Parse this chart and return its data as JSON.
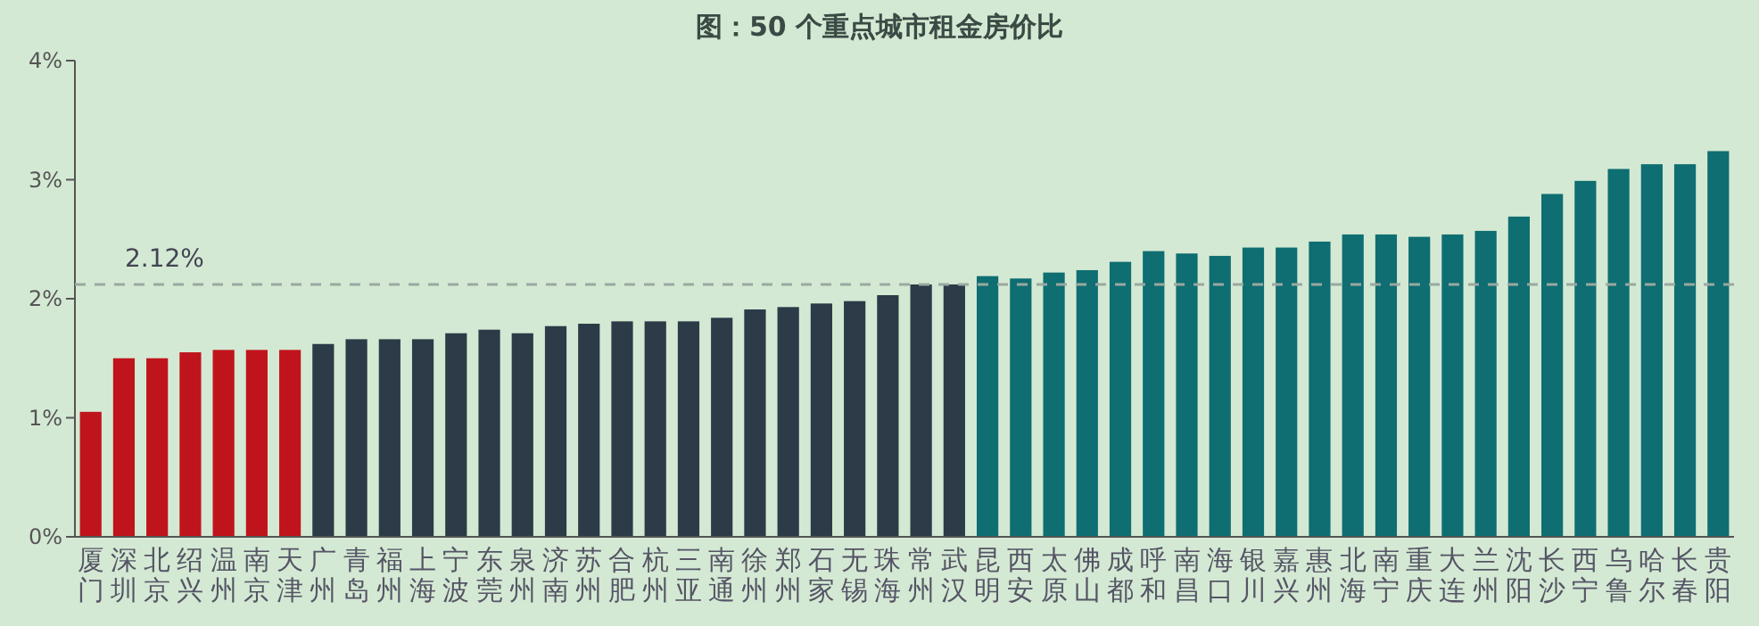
{
  "chart_data": {
    "type": "bar",
    "title": "图：50 个重点城市租金房价比",
    "categories": [
      "厦门",
      "深圳",
      "北京",
      "绍兴",
      "温州",
      "南京",
      "天津",
      "广州",
      "青岛",
      "福州",
      "上海",
      "宁波",
      "东莞",
      "泉州",
      "济南",
      "苏州",
      "合肥",
      "杭州",
      "三亚",
      "南通",
      "徐州",
      "郑州",
      "石家",
      "无锡",
      "珠海",
      "常州",
      "武汉",
      "昆明",
      "西安",
      "太原",
      "佛山",
      "成都",
      "呼和",
      "南昌",
      "海口",
      "银川",
      "嘉兴",
      "惠州",
      "北海",
      "南宁",
      "重庆",
      "大连",
      "兰州",
      "沈阳",
      "长沙",
      "西宁",
      "乌鲁",
      "哈尔",
      "长春",
      "贵阳"
    ],
    "values": [
      1.05,
      1.5,
      1.5,
      1.55,
      1.57,
      1.57,
      1.57,
      1.62,
      1.66,
      1.66,
      1.66,
      1.71,
      1.74,
      1.71,
      1.77,
      1.79,
      1.81,
      1.81,
      1.81,
      1.84,
      1.91,
      1.93,
      1.96,
      1.98,
      2.03,
      2.12,
      2.12,
      2.19,
      2.17,
      2.22,
      2.24,
      2.31,
      2.4,
      2.38,
      2.36,
      2.43,
      2.43,
      2.48,
      2.54,
      2.54,
      2.52,
      2.54,
      2.57,
      2.69,
      2.88,
      2.99,
      3.09,
      3.13,
      3.13,
      3.24
    ],
    "colors": [
      "#c0141c",
      "#c0141c",
      "#c0141c",
      "#c0141c",
      "#c0141c",
      "#c0141c",
      "#c0141c",
      "#2c3b47",
      "#2c3b47",
      "#2c3b47",
      "#2c3b47",
      "#2c3b47",
      "#2c3b47",
      "#2c3b47",
      "#2c3b47",
      "#2c3b47",
      "#2c3b47",
      "#2c3b47",
      "#2c3b47",
      "#2c3b47",
      "#2c3b47",
      "#2c3b47",
      "#2c3b47",
      "#2c3b47",
      "#2c3b47",
      "#2c3b47",
      "#2c3b47",
      "#0e6e72",
      "#0e6e72",
      "#0e6e72",
      "#0e6e72",
      "#0e6e72",
      "#0e6e72",
      "#0e6e72",
      "#0e6e72",
      "#0e6e72",
      "#0e6e72",
      "#0e6e72",
      "#0e6e72",
      "#0e6e72",
      "#0e6e72",
      "#0e6e72",
      "#0e6e72",
      "#0e6e72",
      "#0e6e72",
      "#0e6e72",
      "#0e6e72",
      "#0e6e72",
      "#0e6e72",
      "#0e6e72"
    ],
    "ylim": [
      0,
      4
    ],
    "yticks": [
      {
        "value": 0,
        "label": "0%"
      },
      {
        "value": 1,
        "label": "1%"
      },
      {
        "value": 2,
        "label": "2%"
      },
      {
        "value": 3,
        "label": "3%"
      },
      {
        "value": 4,
        "label": "4%"
      }
    ],
    "ref_lines": [
      {
        "axis": "y",
        "value": 2.12,
        "label": "2.12%",
        "color": "#9aa8a0",
        "line_style": "dashed"
      }
    ],
    "grid": false
  }
}
